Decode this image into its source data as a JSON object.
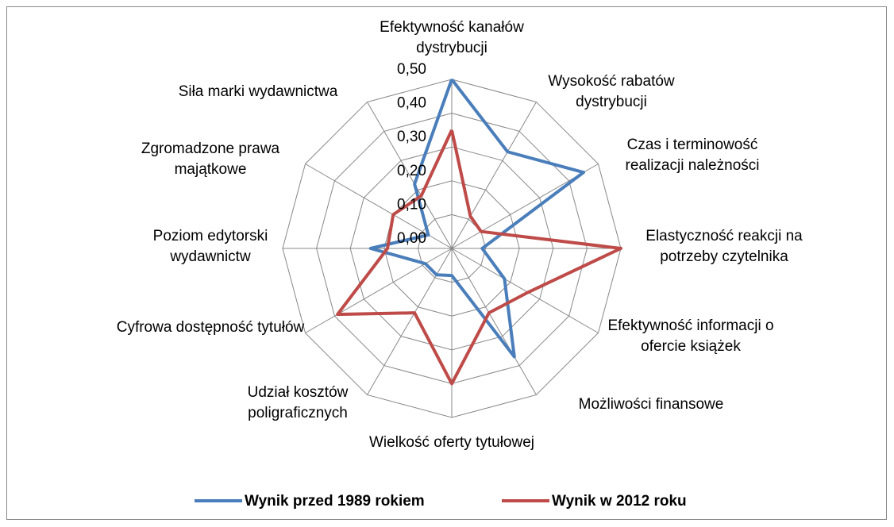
{
  "chart_data": {
    "type": "radar",
    "categories": [
      "Efektywność kanałów dystrybucji",
      "Wysokość rabatów dystrybucji",
      "Czas i terminowość realizacji należności",
      "Elastyczność reakcji na potrzeby czytelnika",
      "Efektywność informacji o ofercie książek",
      "Możliwości finansowe",
      "Wielkość  oferty tytułowej",
      "Udział kosztów poligraficznych",
      "Cyfrowa dostępność tytułów",
      "Poziom edytorski wydawnictw",
      "Zgromadzone prawa majątkowe",
      "Siła marki wydawnictwa"
    ],
    "series": [
      {
        "name": "Wynik przed 1989 rokiem",
        "color": "#4a7ebb",
        "values": [
          0.5,
          0.33,
          0.45,
          0.09,
          0.18,
          0.37,
          0.08,
          0.09,
          0.09,
          0.24,
          0.08,
          0.22
        ]
      },
      {
        "name": "Wynik w 2012 roku",
        "color": "#be4b48",
        "values": [
          0.35,
          0.11,
          0.1,
          0.5,
          0.26,
          0.22,
          0.4,
          0.22,
          0.39,
          0.19,
          0.2,
          0.18
        ]
      }
    ],
    "ylim": [
      0,
      0.5
    ],
    "yticks": [
      {
        "value": 0,
        "label": "0,00"
      },
      {
        "value": 0.1,
        "label": "0,10"
      },
      {
        "value": 0.2,
        "label": "0,20"
      },
      {
        "value": 0.3,
        "label": "0,30"
      },
      {
        "value": 0.4,
        "label": "0,40"
      },
      {
        "value": 0.5,
        "label": "0,50"
      }
    ],
    "grid": true,
    "legend": "bottom"
  }
}
